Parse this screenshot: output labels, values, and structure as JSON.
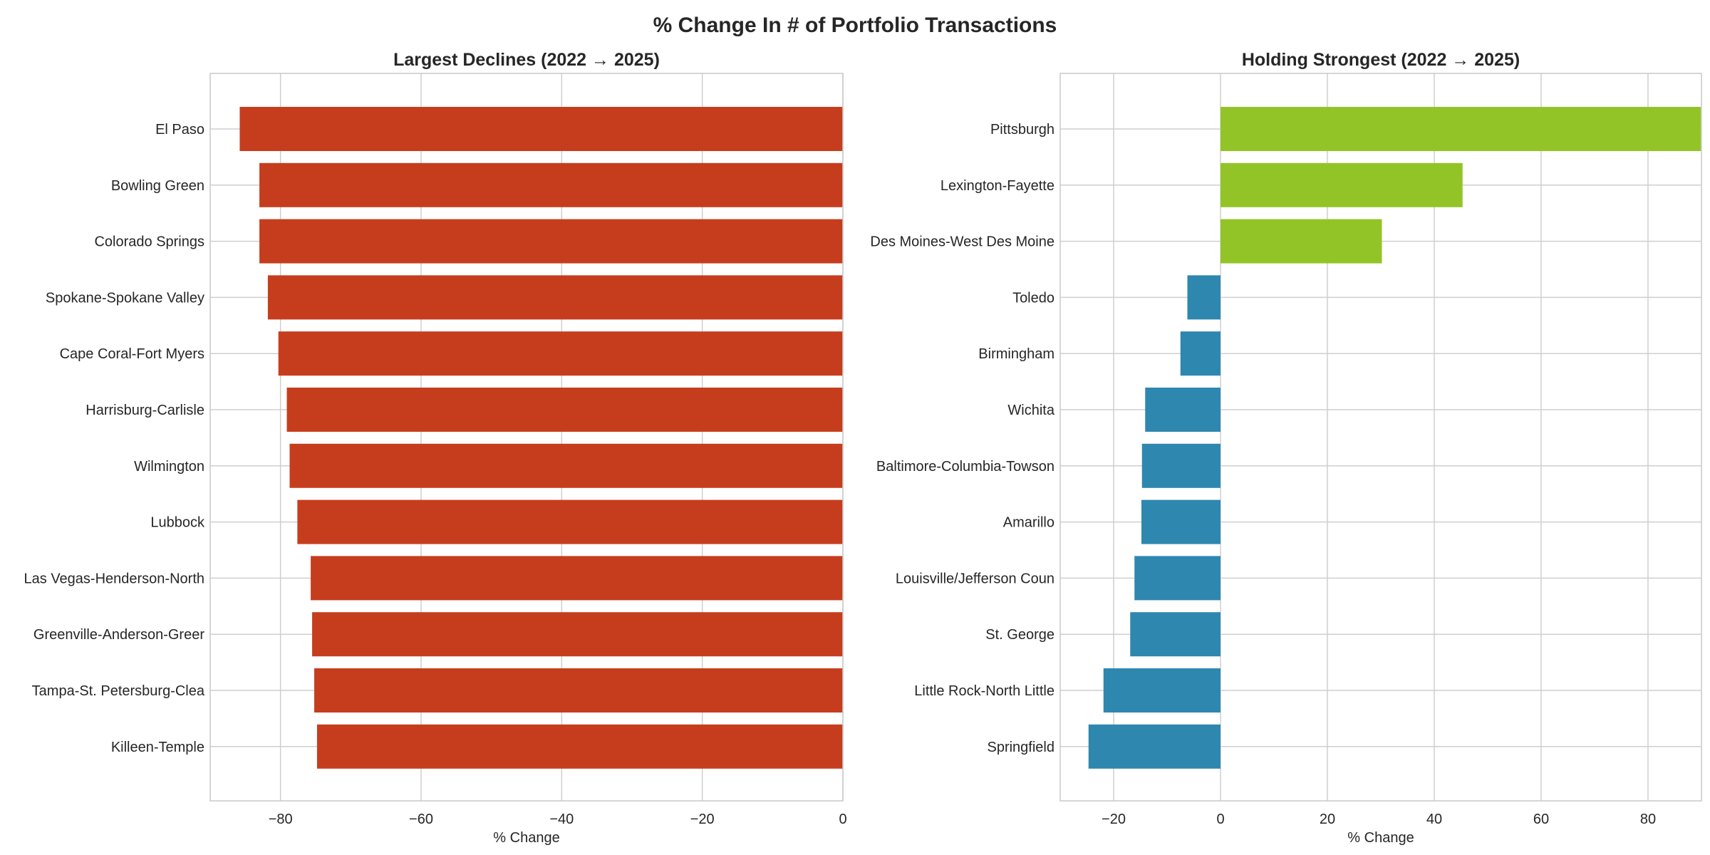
{
  "figure_title": "% Change In # of Portfolio Transactions",
  "colors": {
    "decline_bar": "#c63d1e",
    "positive_bar": "#93c427",
    "negative_bar": "#2e87ae",
    "grid": "#cfcfcf",
    "frame": "#cccccc",
    "text": "#262626"
  },
  "chart_data": [
    {
      "type": "bar",
      "orientation": "horizontal",
      "title": "Largest Declines (2022 → 2025)",
      "xlabel": "% Change",
      "ylabel": "",
      "xlim": [
        -90,
        0
      ],
      "xticks": [
        -80,
        -60,
        -40,
        -20,
        0
      ],
      "xtick_labels": [
        "−80",
        "−60",
        "−40",
        "−20",
        "0"
      ],
      "grid": true,
      "categories": [
        "El Paso",
        "Bowling Green",
        "Colorado Springs",
        "Spokane-Spokane Valley",
        "Cape Coral-Fort Myers",
        "Harrisburg-Carlisle",
        "Wilmington",
        "Lubbock",
        "Las Vegas-Henderson-North",
        "Greenville-Anderson-Greer",
        "Tampa-St. Petersburg-Clea",
        "Killeen-Temple"
      ],
      "values": [
        -85.8,
        -83.0,
        -83.0,
        -81.8,
        -80.3,
        -79.1,
        -78.7,
        -77.6,
        -75.7,
        -75.5,
        -75.2,
        -74.8
      ]
    },
    {
      "type": "bar",
      "orientation": "horizontal",
      "title": "Holding Strongest (2022 → 2025)",
      "xlabel": "% Change",
      "ylabel": "",
      "xlim": [
        -30,
        90
      ],
      "xticks": [
        -20,
        0,
        20,
        40,
        60,
        80
      ],
      "xtick_labels": [
        "−20",
        "0",
        "20",
        "40",
        "60",
        "80"
      ],
      "grid": true,
      "categories": [
        "Pittsburgh",
        "Lexington-Fayette",
        "Des Moines-West Des Moine",
        "Toledo",
        "Birmingham",
        "Wichita",
        "Baltimore-Columbia-Towson",
        "Amarillo",
        "Louisville/Jefferson Coun",
        "St. George",
        "Little Rock-North Little",
        "Springfield"
      ],
      "values": [
        89.9,
        45.3,
        30.2,
        -6.2,
        -7.5,
        -14.1,
        -14.7,
        -14.8,
        -16.1,
        -16.9,
        -21.9,
        -24.7
      ]
    }
  ]
}
